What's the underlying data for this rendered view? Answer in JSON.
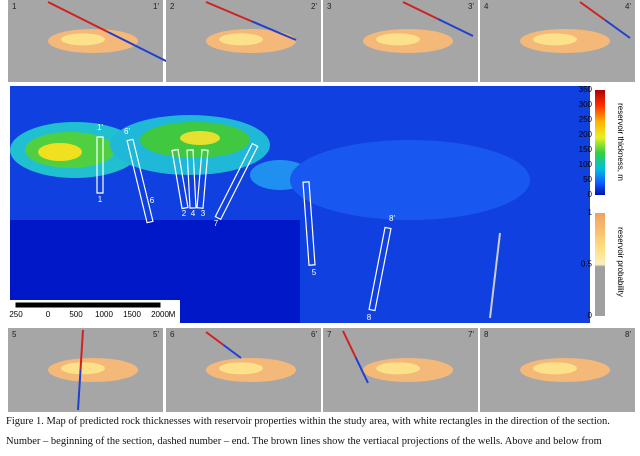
{
  "top_panels": [
    {
      "start": "1",
      "end": "1'"
    },
    {
      "start": "2",
      "end": "2'"
    },
    {
      "start": "3",
      "end": "3'"
    },
    {
      "start": "4",
      "end": "4'"
    }
  ],
  "bottom_panels": [
    {
      "start": "5",
      "end": "5'"
    },
    {
      "start": "6",
      "end": "6'"
    },
    {
      "start": "7",
      "end": "7'"
    },
    {
      "start": "8",
      "end": "8'"
    }
  ],
  "map": {
    "section_labels": [
      "1'",
      "6'",
      "1",
      "6",
      "2",
      "4",
      "3",
      "7",
      "5",
      "8'",
      "8"
    ],
    "scale_bar": [
      "250",
      "0",
      "500",
      "1000",
      "1500",
      "2000",
      "M"
    ]
  },
  "thickness_bar": {
    "title": "reservoir thickness, m",
    "ticks": [
      "350",
      "300",
      "250",
      "200",
      "150",
      "100",
      "50",
      "0"
    ]
  },
  "probability_bar": {
    "title": "reservoir probability",
    "ticks": [
      "1",
      "0.5",
      "0"
    ]
  },
  "caption": [
    "Figure 1. Map of predicted rock thicknesses with reservoir properties within the study area, with white rectangles in the direction of the section.",
    "Number – beginning of the section, dashed number – end. The brown lines show the vertiacal projections of the wells. Above and below from"
  ]
}
